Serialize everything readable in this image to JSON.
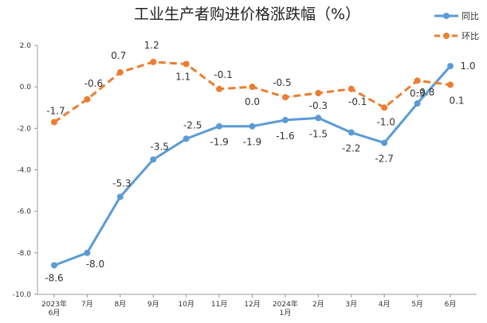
{
  "chart_data": {
    "type": "line",
    "title": "工业生产者购进价格涨跌幅（%）",
    "categories": [
      [
        "2023年",
        "6月"
      ],
      [
        "7月"
      ],
      [
        "8月"
      ],
      [
        "9月"
      ],
      [
        "10月"
      ],
      [
        "11月"
      ],
      [
        "12月"
      ],
      [
        "2024年",
        "1月"
      ],
      [
        "2月"
      ],
      [
        "3月"
      ],
      [
        "4月"
      ],
      [
        "5月"
      ],
      [
        "6月"
      ]
    ],
    "ylim": [
      -10.0,
      2.0
    ],
    "yticks": [
      "-10.0",
      "-8.0",
      "-6.0",
      "-4.0",
      "-2.0",
      "0.0",
      "2.0"
    ],
    "grid": false,
    "legend_position": "top-right",
    "series": [
      {
        "name": "同比",
        "color": "#5B9BD5",
        "style": "solid",
        "values": [
          -8.6,
          -8.0,
          -5.3,
          -3.5,
          -2.5,
          -1.9,
          -1.9,
          -1.6,
          -1.5,
          -2.2,
          -2.7,
          -0.8,
          1.0
        ],
        "labels": [
          "-8.6",
          "-8.0",
          "-5.3",
          "-3.5",
          "-2.5",
          "-1.9",
          "-1.9",
          "-1.6",
          "-1.5",
          "-2.2",
          "-2.7",
          "-0.8",
          "1.0"
        ]
      },
      {
        "name": "环比",
        "color": "#ED7D31",
        "style": "dashed",
        "values": [
          -1.7,
          -0.6,
          0.7,
          1.2,
          1.1,
          -0.1,
          0.0,
          -0.5,
          -0.3,
          -0.1,
          -1.0,
          0.3,
          0.1
        ],
        "labels": [
          "-1.7",
          "-0.6",
          "0.7",
          "1.2",
          "1.1",
          "-0.1",
          "0.0",
          "-0.5",
          "-0.3",
          "-0.1",
          "-1.0",
          "0.3",
          "0.1"
        ]
      }
    ]
  }
}
